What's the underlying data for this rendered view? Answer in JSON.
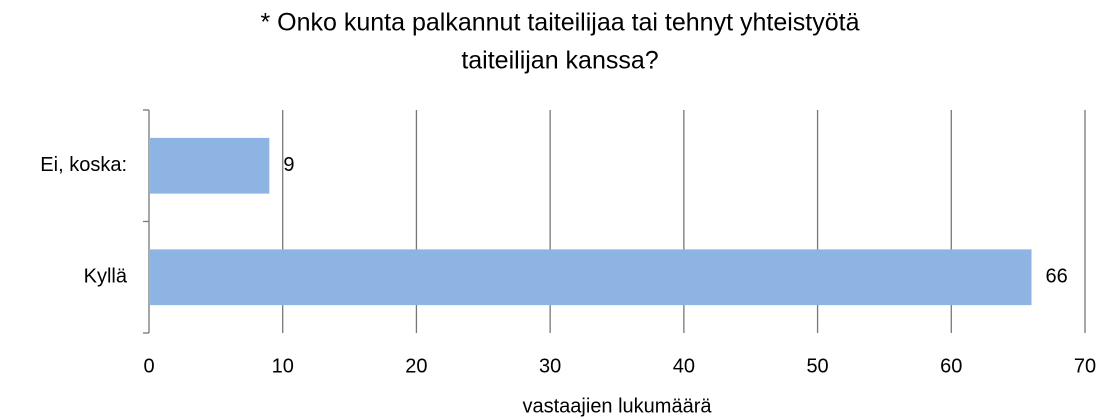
{
  "chart_data": {
    "type": "barh",
    "title": [
      "* Onko kunta palkannut taiteilijaa tai tehnyt yhteistyötä",
      "taiteilijan kanssa?"
    ],
    "categories": [
      "Ei, koska:",
      "Kyllä"
    ],
    "values": [
      9,
      66
    ],
    "color": "#8eb4e3",
    "xlabel": "vastaajien lukumäärä",
    "xlim": [
      0,
      70
    ],
    "xticks": [
      0,
      10,
      20,
      30,
      40,
      50,
      60,
      70
    ],
    "grid": true
  }
}
